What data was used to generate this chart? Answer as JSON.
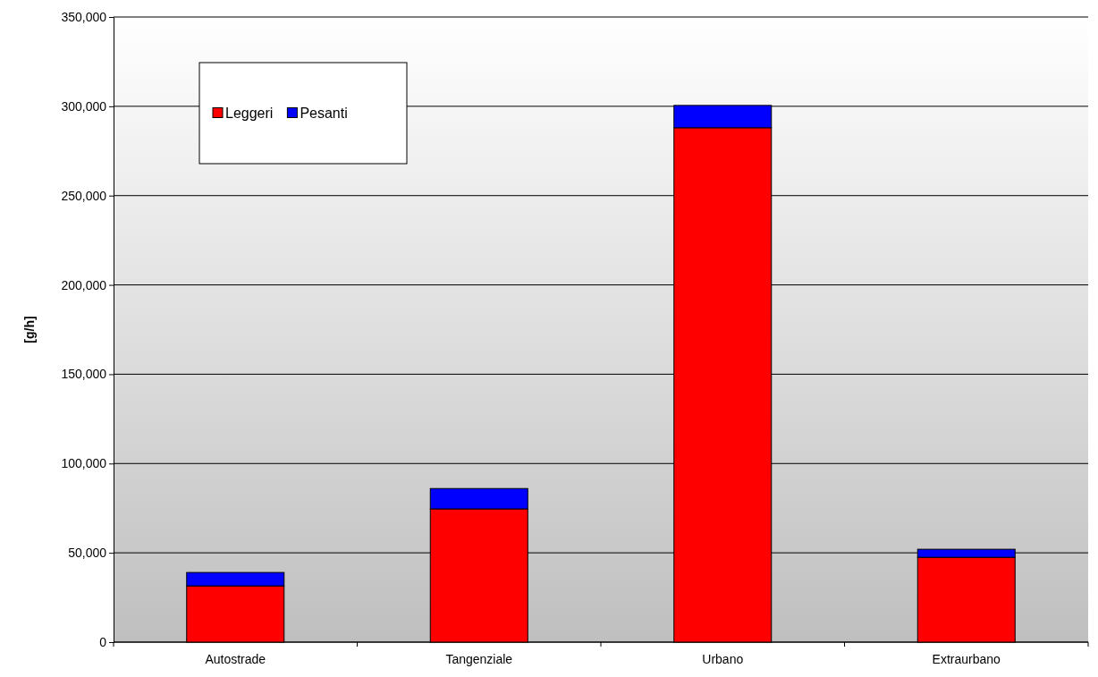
{
  "chart_data": {
    "type": "bar",
    "stacked": true,
    "ylabel": "[g/h]",
    "categories": [
      "Autostrade",
      "Tangenziale",
      "Urbano",
      "Extraurbano"
    ],
    "series": [
      {
        "name": "Leggeri",
        "color": "#ff0000",
        "values": [
          31500,
          74600,
          288000,
          47500
        ]
      },
      {
        "name": "Pesanti",
        "color": "#0000ff",
        "values": [
          7500,
          11400,
          12500,
          4500
        ]
      }
    ],
    "ylim": [
      0,
      350000
    ],
    "yticks": [
      {
        "value": 0,
        "label": "0"
      },
      {
        "value": 50000,
        "label": "50,000"
      },
      {
        "value": 100000,
        "label": "100,000"
      },
      {
        "value": 150000,
        "label": "150,000"
      },
      {
        "value": 200000,
        "label": "200,000"
      },
      {
        "value": 250000,
        "label": "250,000"
      },
      {
        "value": 300000,
        "label": "300,000"
      },
      {
        "value": 350000,
        "label": "350,000"
      }
    ],
    "grid": "y",
    "legend": "top left"
  }
}
